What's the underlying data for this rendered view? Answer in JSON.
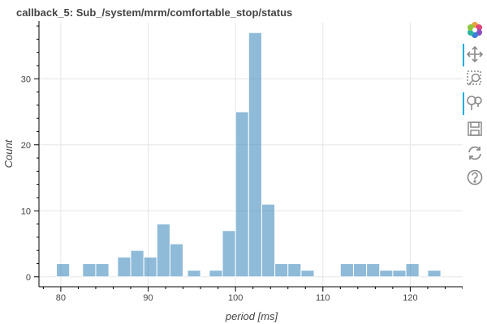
{
  "chart_data": {
    "type": "histogram",
    "title": "callback_5: Sub_/system/mrm/comfortable_stop/status",
    "xlabel": "period [ms]",
    "ylabel": "Count",
    "xlim": [
      77.5,
      126
    ],
    "ylim": [
      -1.5,
      38.5
    ],
    "xticks": [
      80,
      90,
      100,
      110,
      120
    ],
    "yticks": [
      0,
      10,
      20,
      30
    ],
    "grid": true,
    "legend": "none",
    "bar_color": "#1f77b4",
    "bins": [
      {
        "x0": 79.5,
        "x1": 81.0,
        "count": 2
      },
      {
        "x0": 82.5,
        "x1": 84.0,
        "count": 2
      },
      {
        "x0": 84.0,
        "x1": 85.5,
        "count": 2
      },
      {
        "x0": 86.5,
        "x1": 88.0,
        "count": 3
      },
      {
        "x0": 88.0,
        "x1": 89.5,
        "count": 4
      },
      {
        "x0": 89.5,
        "x1": 91.0,
        "count": 3
      },
      {
        "x0": 91.0,
        "x1": 92.5,
        "count": 8
      },
      {
        "x0": 92.5,
        "x1": 94.0,
        "count": 5
      },
      {
        "x0": 94.5,
        "x1": 96.0,
        "count": 1
      },
      {
        "x0": 97.0,
        "x1": 98.5,
        "count": 1
      },
      {
        "x0": 98.5,
        "x1": 100.0,
        "count": 7
      },
      {
        "x0": 100.0,
        "x1": 101.5,
        "count": 25
      },
      {
        "x0": 101.5,
        "x1": 103.0,
        "count": 37
      },
      {
        "x0": 103.0,
        "x1": 104.5,
        "count": 11
      },
      {
        "x0": 104.5,
        "x1": 106.0,
        "count": 2
      },
      {
        "x0": 106.0,
        "x1": 107.5,
        "count": 2
      },
      {
        "x0": 107.5,
        "x1": 109.0,
        "count": 1
      },
      {
        "x0": 112.0,
        "x1": 113.5,
        "count": 2
      },
      {
        "x0": 113.5,
        "x1": 115.0,
        "count": 2
      },
      {
        "x0": 115.0,
        "x1": 116.5,
        "count": 2
      },
      {
        "x0": 116.5,
        "x1": 118.0,
        "count": 1
      },
      {
        "x0": 118.0,
        "x1": 119.5,
        "count": 1
      },
      {
        "x0": 119.5,
        "x1": 121.0,
        "count": 2
      },
      {
        "x0": 122.0,
        "x1": 123.5,
        "count": 1
      }
    ]
  },
  "toolbar": {
    "logo_icon": "bokeh-logo-icon",
    "tools": [
      {
        "icon": "pan-icon",
        "active": true
      },
      {
        "icon": "box-zoom-icon",
        "active": false
      },
      {
        "icon": "wheel-zoom-icon",
        "active": true
      },
      {
        "icon": "save-icon",
        "active": false
      },
      {
        "icon": "reset-icon",
        "active": false
      },
      {
        "icon": "help-icon",
        "active": false
      }
    ]
  }
}
